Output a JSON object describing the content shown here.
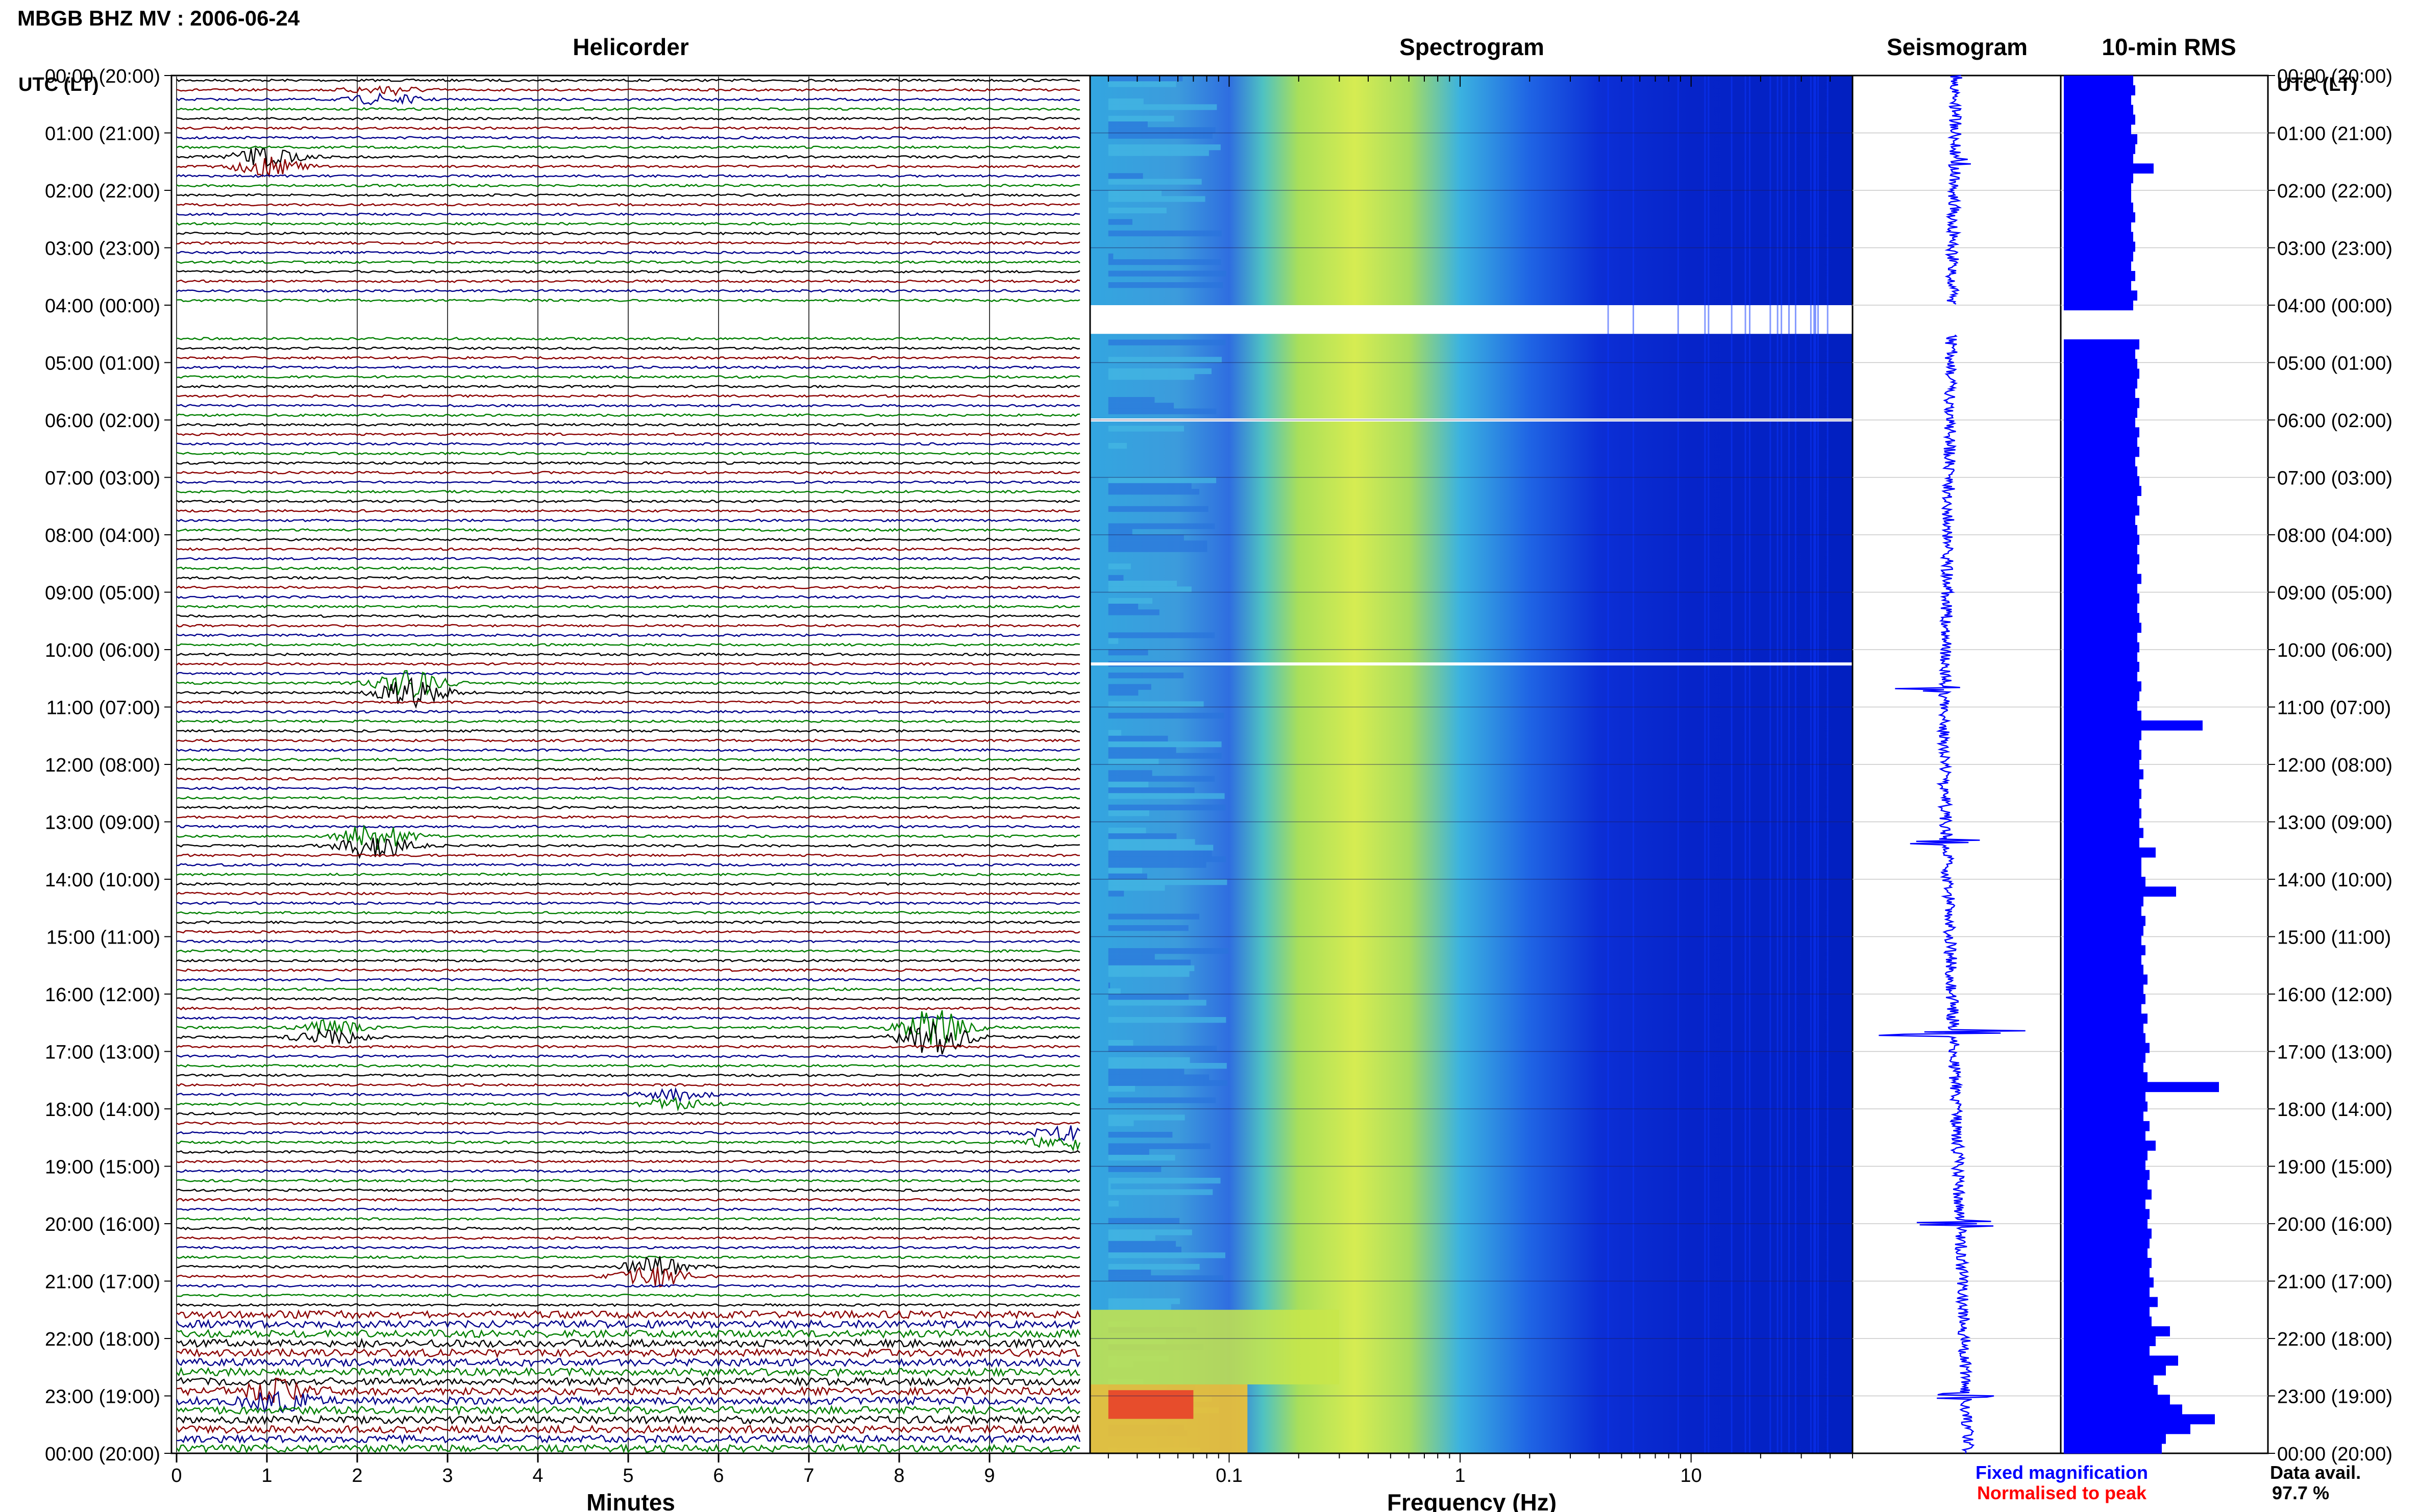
{
  "header": {
    "title": "MBGB BHZ MV : 2006-06-24"
  },
  "panels": {
    "helicorder": {
      "title": "Helicorder",
      "xlabel": "Minutes"
    },
    "spectrogram": {
      "title": "Spectrogram",
      "xlabel": "Frequency (Hz)"
    },
    "seismogram": {
      "title": "Seismogram"
    },
    "rms": {
      "title": "10-min RMS"
    }
  },
  "axis_titles": {
    "left": "UTC (LT)",
    "right": "UTC (LT)"
  },
  "footer": {
    "fixed_label": "Fixed magnification",
    "normalised_label": "Normalised to peak",
    "avail_label": "Data avail.",
    "avail_value": "97.7 %"
  },
  "colors": {
    "fixed": "#0000ff",
    "normalised": "#ff0000",
    "trace_cycle": [
      "#000000",
      "#8b0000",
      "#00008b",
      "#007f00"
    ],
    "rms_bar": "#0000ff"
  },
  "chart_data": [
    {
      "type": "line",
      "panel": "helicorder",
      "title": "Helicorder",
      "xlabel": "Minutes",
      "ylabel": "UTC (LT)",
      "xlim": [
        0,
        10
      ],
      "x_ticks": [
        "0",
        "1",
        "2",
        "3",
        "4",
        "5",
        "6",
        "7",
        "8",
        "9"
      ],
      "y_ticks": [
        "00:00 (20:00)",
        "01:00 (21:00)",
        "02:00 (22:00)",
        "03:00 (23:00)",
        "04:00 (00:00)",
        "05:00 (01:00)",
        "06:00 (02:00)",
        "07:00 (03:00)",
        "08:00 (04:00)",
        "09:00 (05:00)",
        "10:00 (06:00)",
        "11:00 (07:00)",
        "12:00 (08:00)",
        "13:00 (09:00)",
        "14:00 (10:00)",
        "15:00 (11:00)",
        "16:00 (12:00)",
        "17:00 (13:00)",
        "18:00 (14:00)",
        "19:00 (15:00)",
        "20:00 (16:00)",
        "21:00 (17:00)",
        "22:00 (18:00)",
        "23:00 (19:00)",
        "00:00 (20:00)"
      ],
      "lines_per_hour": 6,
      "gap_hours": [
        4.0,
        4.5
      ],
      "events": [
        {
          "hour": 0.33,
          "minute": 2.3,
          "amplitude": 1.2
        },
        {
          "hour": 1.5,
          "minute": 1.0,
          "amplitude": 2.0
        },
        {
          "hour": 10.67,
          "minute": 2.6,
          "amplitude": 3.2
        },
        {
          "hour": 13.33,
          "minute": 2.2,
          "amplitude": 3.0
        },
        {
          "hour": 16.67,
          "minute": 8.4,
          "amplitude": 4.0
        },
        {
          "hour": 16.67,
          "minute": 1.7,
          "amplitude": 1.6
        },
        {
          "hour": 17.83,
          "minute": 5.5,
          "amplitude": 1.2
        },
        {
          "hour": 18.5,
          "minute": 9.8,
          "amplitude": 1.6
        },
        {
          "hour": 20.83,
          "minute": 5.3,
          "amplitude": 2.2
        },
        {
          "hour": 23.0,
          "minute": 1.1,
          "amplitude": 2.0
        }
      ]
    },
    {
      "type": "heatmap",
      "panel": "spectrogram",
      "title": "Spectrogram",
      "xlabel": "Frequency (Hz)",
      "x_scale": "log",
      "xlim": [
        0.025,
        50
      ],
      "x_ticks": [
        "0.1",
        "1",
        "10"
      ],
      "ylim_hours": [
        0,
        24
      ],
      "gap_hours": [
        4.0,
        4.5
      ],
      "white_lines_hours": [
        6.0,
        10.25
      ],
      "peak_band_hz": [
        0.2,
        0.6
      ],
      "low_freq_anomaly": {
        "hours": [
          21.5,
          24.0
        ],
        "freq_hz": [
          0.025,
          0.3
        ]
      }
    },
    {
      "type": "line",
      "panel": "seismogram",
      "title": "Seismogram",
      "ylim_hours": [
        0,
        24
      ],
      "gap_hours": [
        4.0,
        4.5
      ],
      "spikes": [
        {
          "hour": 1.5,
          "amplitude": 0.4
        },
        {
          "hour": 10.67,
          "amplitude": 1.0
        },
        {
          "hour": 13.33,
          "amplitude": 0.8
        },
        {
          "hour": 16.67,
          "amplitude": 1.5
        },
        {
          "hour": 20.0,
          "amplitude": 0.9
        },
        {
          "hour": 23.0,
          "amplitude": 0.6
        }
      ]
    },
    {
      "type": "bar",
      "panel": "rms",
      "title": "10-min RMS",
      "orientation": "horizontal",
      "ylim_hours": [
        0,
        24
      ],
      "gap_hours": [
        4.0,
        4.5
      ],
      "values": [
        0.34,
        0.35,
        0.33,
        0.34,
        0.35,
        0.33,
        0.36,
        0.35,
        0.34,
        0.44,
        0.34,
        0.33,
        0.33,
        0.34,
        0.35,
        0.33,
        0.34,
        0.35,
        0.34,
        0.33,
        0.35,
        0.33,
        0.36,
        0.34,
        null,
        null,
        null,
        0.37,
        0.35,
        0.36,
        0.37,
        0.36,
        0.35,
        0.37,
        0.36,
        0.35,
        0.37,
        0.36,
        0.37,
        0.35,
        0.36,
        0.37,
        0.38,
        0.36,
        0.37,
        0.35,
        0.36,
        0.37,
        0.36,
        0.37,
        0.36,
        0.38,
        0.36,
        0.37,
        0.36,
        0.37,
        0.38,
        0.36,
        0.37,
        0.36,
        0.37,
        0.36,
        0.38,
        0.37,
        0.36,
        0.38,
        0.68,
        0.38,
        0.37,
        0.38,
        0.37,
        0.39,
        0.37,
        0.38,
        0.37,
        0.38,
        0.37,
        0.39,
        0.37,
        0.45,
        0.38,
        0.38,
        0.4,
        0.55,
        0.39,
        0.38,
        0.4,
        0.39,
        0.38,
        0.4,
        0.38,
        0.39,
        0.41,
        0.39,
        0.4,
        0.38,
        0.41,
        0.39,
        0.4,
        0.42,
        0.4,
        0.39,
        0.41,
        0.76,
        0.4,
        0.41,
        0.39,
        0.42,
        0.4,
        0.45,
        0.41,
        0.4,
        0.42,
        0.41,
        0.43,
        0.4,
        0.42,
        0.41,
        0.43,
        0.42,
        0.41,
        0.43,
        0.42,
        0.44,
        0.42,
        0.46,
        0.42,
        0.43,
        0.52,
        0.45,
        0.42,
        0.56,
        0.5,
        0.44,
        0.46,
        0.52,
        0.58,
        0.74,
        0.62,
        0.5,
        0.48
      ]
    }
  ]
}
